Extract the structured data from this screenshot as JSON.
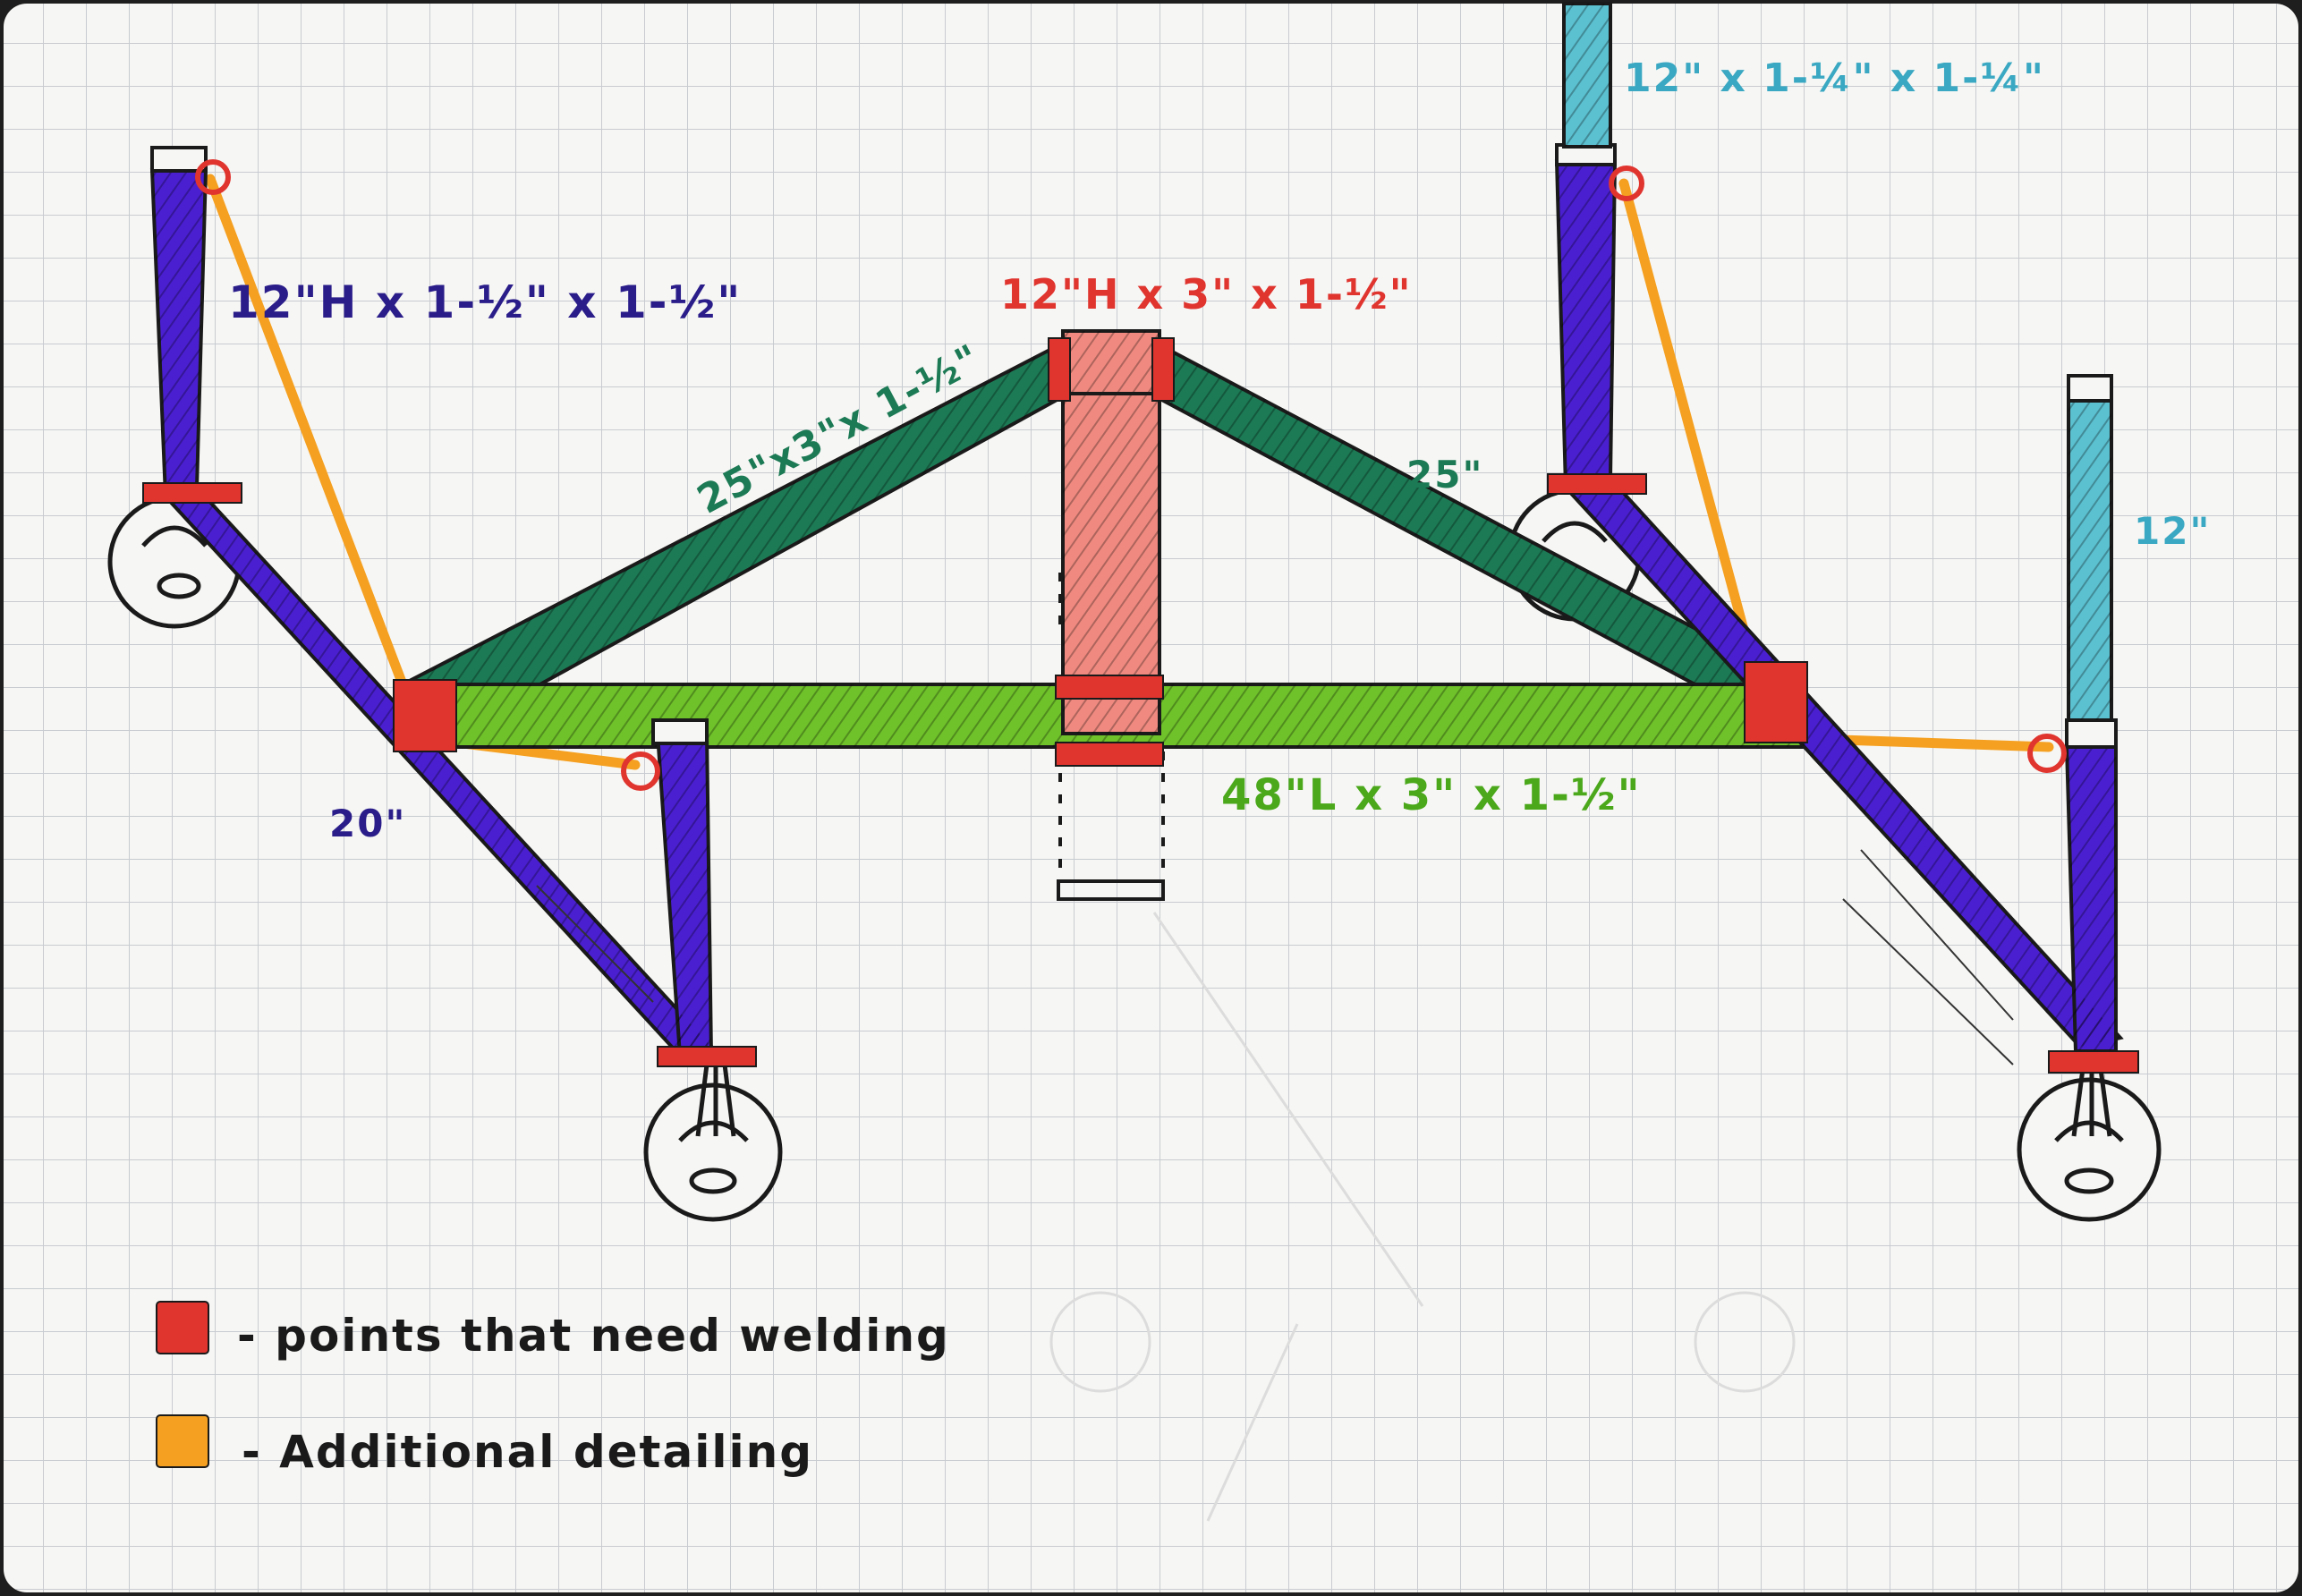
{
  "colors": {
    "paper": "#f6f6f4",
    "grid": "#c8cbd0",
    "purple": "#4a1fd0",
    "dark_green": "#1c7a55",
    "light_green": "#6fc22a",
    "red": "#e0342f",
    "salmon": "#f08a80",
    "orange": "#f5a020",
    "cyan": "#5bc0d0",
    "ink": "#1a1a1a"
  },
  "labels": {
    "leg_left": "12\"H x 1-½\" x 1-½\"",
    "center_post": "12\"H x 3\" x 1-½\"",
    "brace_left": "25\"x3\"x 1-½\"",
    "brace_right": "25\"",
    "base_beam": "48\"L x 3\" x 1-½\"",
    "diagonal_left": "20\"",
    "top_insert": "12\" x 1-¼\" x 1-¼\"",
    "right_insert": "12\""
  },
  "legend": [
    {
      "swatch": "#e0342f",
      "text": "- points that need welding"
    },
    {
      "swatch": "#f5a020",
      "text": "- Additional detailing"
    }
  ]
}
